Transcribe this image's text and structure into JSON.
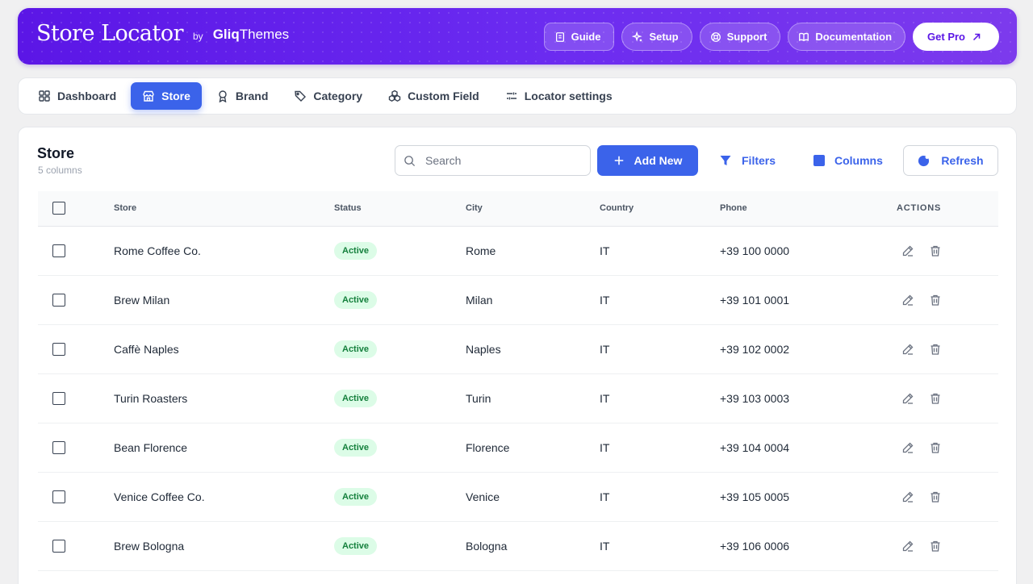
{
  "header": {
    "logo_text": "Store Locator",
    "by": "by",
    "company_bold": "Gliq",
    "company_thin": "Themes",
    "buttons": [
      {
        "label": "Guide",
        "icon": "book-icon"
      },
      {
        "label": "Setup",
        "icon": "sparkle-icon"
      },
      {
        "label": "Support",
        "icon": "lifebuoy-icon"
      },
      {
        "label": "Documentation",
        "icon": "open-book-icon"
      },
      {
        "label": "Get Pro",
        "icon": "arrow-up-right-icon"
      }
    ]
  },
  "nav": {
    "tabs": [
      {
        "label": "Dashboard",
        "icon": "grid-icon"
      },
      {
        "label": "Store",
        "icon": "storefront-icon",
        "active": true
      },
      {
        "label": "Brand",
        "icon": "ribbon-icon"
      },
      {
        "label": "Category",
        "icon": "tag-icon"
      },
      {
        "label": "Custom Field",
        "icon": "cubes-icon"
      },
      {
        "label": "Locator settings",
        "icon": "sliders-icon"
      }
    ]
  },
  "main": {
    "title": "Store",
    "subtitle": "5 columns",
    "search_placeholder": "Search",
    "add_new_label": "Add New",
    "filters_label": "Filters",
    "columns_label": "Columns",
    "refresh_label": "Refresh",
    "accent_color": "#3b63ea",
    "table": {
      "headers": [
        "Store",
        "Status",
        "City",
        "Country",
        "Phone",
        "ACTIONS"
      ],
      "rows": [
        {
          "store": "Rome Coffee Co.",
          "status": "Active",
          "city": "Rome",
          "country": "IT",
          "phone": "+39 100 0000"
        },
        {
          "store": "Brew Milan",
          "status": "Active",
          "city": "Milan",
          "country": "IT",
          "phone": "+39 101 0001"
        },
        {
          "store": "Caffè Naples",
          "status": "Active",
          "city": "Naples",
          "country": "IT",
          "phone": "+39 102 0002"
        },
        {
          "store": "Turin Roasters",
          "status": "Active",
          "city": "Turin",
          "country": "IT",
          "phone": "+39 103 0003"
        },
        {
          "store": "Bean Florence",
          "status": "Active",
          "city": "Florence",
          "country": "IT",
          "phone": "+39 104 0004"
        },
        {
          "store": "Venice Coffee Co.",
          "status": "Active",
          "city": "Venice",
          "country": "IT",
          "phone": "+39 105 0005"
        },
        {
          "store": "Brew Bologna",
          "status": "Active",
          "city": "Bologna",
          "country": "IT",
          "phone": "+39 106 0006"
        }
      ]
    }
  }
}
